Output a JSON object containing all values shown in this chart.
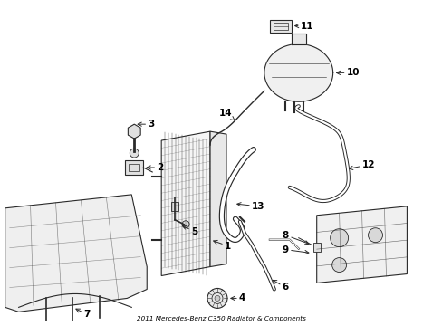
{
  "title": "2011 Mercedes-Benz C350 Radiator & Components",
  "bg_color": "#ffffff",
  "lc": "#2a2a2a",
  "fig_width": 4.89,
  "fig_height": 3.6,
  "dpi": 100,
  "label_fontsize": 7.5,
  "label_fontweight": "bold",
  "arrow_lw": 0.7,
  "component_lw": 0.8,
  "hose_lw": 2.2,
  "hose_inner_lw": 1.2
}
